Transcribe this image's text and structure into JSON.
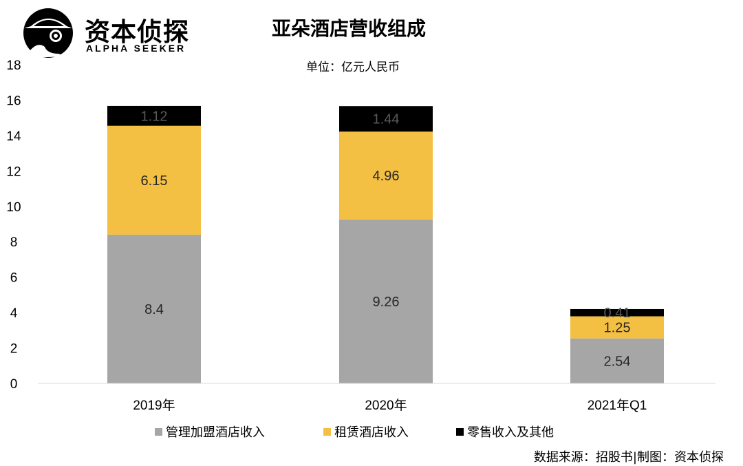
{
  "brand": {
    "name_cn": "资本侦探",
    "name_en": "ALPHA SEEKER",
    "icon": "detective-logo-icon"
  },
  "chart_data": {
    "type": "bar",
    "stacked": true,
    "title": "亚朵酒店营收组成",
    "subtitle": "单位：亿元人民币",
    "categories": [
      "2019年",
      "2020年",
      "2021年Q1"
    ],
    "series": [
      {
        "name": "管理加盟酒店收入",
        "color": "#a6a6a6",
        "values": [
          8.4,
          9.26,
          2.54
        ]
      },
      {
        "name": "租赁酒店收入",
        "color": "#f4c043",
        "values": [
          6.15,
          4.96,
          1.25
        ]
      },
      {
        "name": "零售收入及其他",
        "color": "#000000",
        "values": [
          1.12,
          1.44,
          0.41
        ]
      }
    ],
    "data_labels": [
      [
        "8.4",
        "9.26",
        "2.54"
      ],
      [
        "6.15",
        "4.96",
        "1.25"
      ],
      [
        "1.12",
        "1.44",
        "0.41"
      ]
    ],
    "ylim": [
      0,
      18
    ],
    "yticks": [
      "0",
      "2",
      "4",
      "6",
      "8",
      "10",
      "12",
      "14",
      "16",
      "18"
    ],
    "grid": false,
    "legend_position": "bottom"
  },
  "source": "数据来源：招股书|制图：资本侦探"
}
